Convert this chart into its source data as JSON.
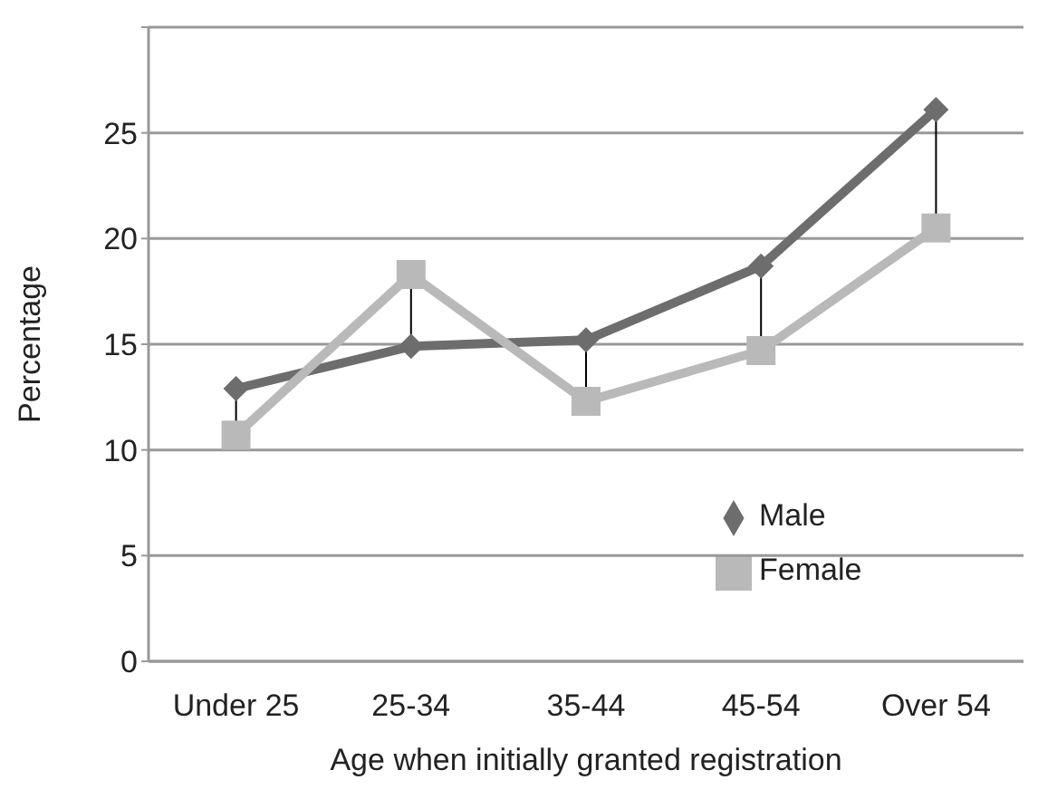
{
  "chart_data": {
    "type": "line",
    "xlabel": "Age when initially granted registration",
    "ylabel": "Percentage",
    "categories": [
      "Under 25",
      "25-34",
      "35-44",
      "45-54",
      "Over 54"
    ],
    "series": [
      {
        "name": "Male",
        "color": "#6d6d6d",
        "marker": "diamond",
        "values": [
          12.9,
          14.9,
          15.2,
          18.7,
          26.1
        ]
      },
      {
        "name": "Female",
        "color": "#b9b9b9",
        "marker": "square",
        "values": [
          10.7,
          18.3,
          12.3,
          14.7,
          20.5
        ]
      }
    ],
    "ylim": [
      0,
      30
    ],
    "yticks": [
      0,
      5,
      10,
      15,
      20,
      25,
      {
        "value": 30,
        "label": null
      }
    ],
    "grid": "y",
    "legend": "bottom right"
  }
}
